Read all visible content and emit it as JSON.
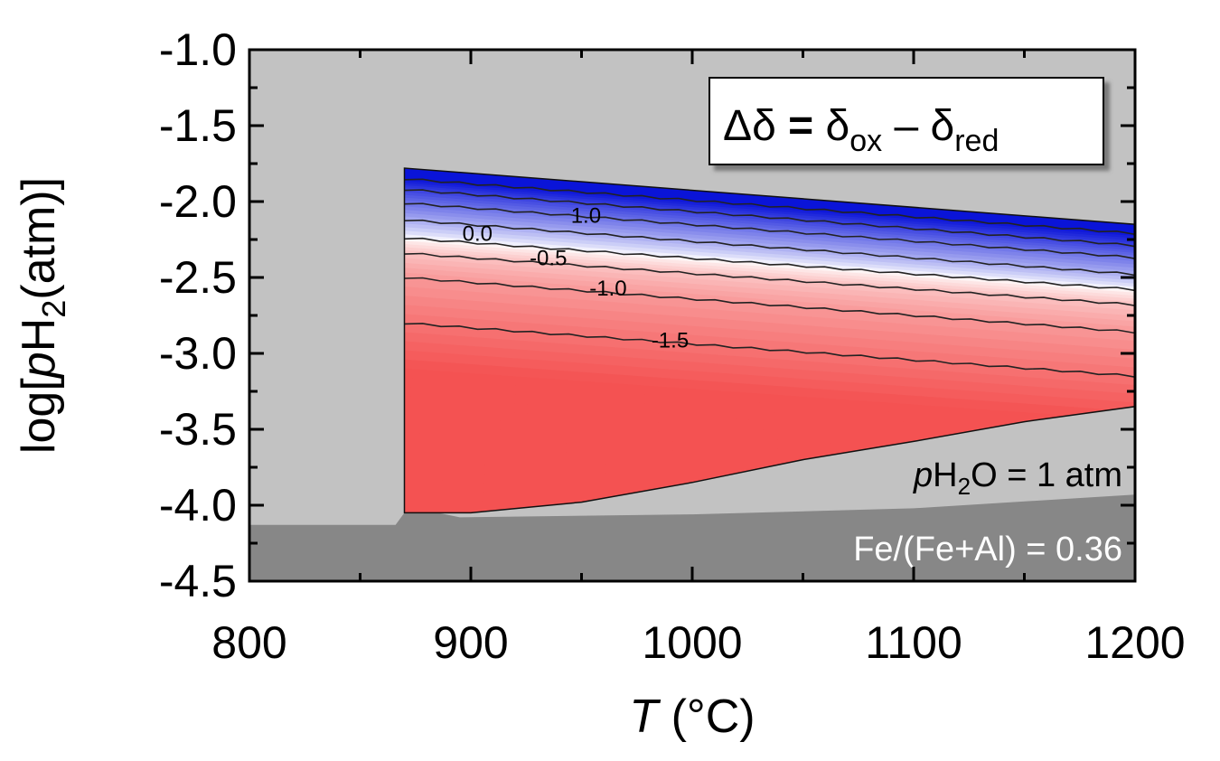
{
  "chart_data": {
    "type": "heatmap",
    "title": "",
    "xlabel": {
      "main": "T",
      "unit": " (°C)"
    },
    "ylabel": {
      "pre": "log[",
      "p": "p",
      "h": "H",
      "sub": "2",
      "post": "(atm)]"
    },
    "xlim": [
      800,
      1200
    ],
    "ylim": [
      -4.5,
      -1.0
    ],
    "xticks": [
      800,
      900,
      1000,
      1100,
      1200
    ],
    "xtick_labels": [
      "800",
      "900",
      "1000",
      "1100",
      "1200"
    ],
    "yticks": [
      -1.0,
      -1.5,
      -2.0,
      -2.5,
      -3.0,
      -3.5,
      -4.0,
      -4.5
    ],
    "ytick_labels": [
      "-1.0",
      "-1.5",
      "-2.0",
      "-2.5",
      "-3.0",
      "-3.5",
      "-4.0",
      "-4.5"
    ],
    "legend_box": {
      "delta": "Δδ",
      "eq": " = ",
      "d1": "δ",
      "s1": "ox",
      "minus": " – ",
      "d2": "δ",
      "s2": "red"
    },
    "annotation_ph2o": {
      "p": "p",
      "h": "H",
      "sub": "2",
      "rest": "O = 1 atm"
    },
    "annotation_comp": "Fe/(Fe+Al) = 0.36",
    "colors": {
      "region_light": "#c2c2c2",
      "region_dark": "#878787",
      "positive_max": "#0a14d8",
      "zero": "#ffffff",
      "negative_max": "#f45252"
    },
    "color_range": [
      -2.0,
      2.0
    ],
    "region_boundaries": {
      "upper_edge": [
        [
          870,
          -1.78
        ],
        [
          1200,
          -2.15
        ]
      ],
      "lower_edge": [
        [
          870,
          -4.05
        ],
        [
          900,
          -4.05
        ],
        [
          950,
          -3.98
        ],
        [
          1000,
          -3.85
        ],
        [
          1050,
          -3.7
        ],
        [
          1100,
          -3.58
        ],
        [
          1150,
          -3.45
        ],
        [
          1200,
          -3.35
        ]
      ],
      "dark_edge": [
        [
          800,
          -4.13
        ],
        [
          866,
          -4.13
        ],
        [
          870,
          -4.05
        ],
        [
          885,
          -4.05
        ],
        [
          895,
          -4.08
        ],
        [
          1000,
          -4.06
        ],
        [
          1100,
          -4.02
        ],
        [
          1200,
          -3.93
        ]
      ]
    },
    "contour_lines": [
      {
        "level": 2.0,
        "left_y": -1.85,
        "right_y": -2.21
      },
      {
        "level": 1.5,
        "left_y": -1.92,
        "right_y": -2.29
      },
      {
        "level": 1.0,
        "left_y": -2.01,
        "right_y": -2.37
      },
      {
        "level": 0.5,
        "left_y": -2.12,
        "right_y": -2.48
      },
      {
        "level": 0.0,
        "left_y": -2.24,
        "right_y": -2.58
      },
      {
        "level": -0.5,
        "left_y": -2.34,
        "right_y": -2.68
      },
      {
        "level": -1.0,
        "left_y": -2.5,
        "right_y": -2.86
      },
      {
        "level": -1.5,
        "left_y": -2.8,
        "right_y": -3.15
      }
    ],
    "contour_labels": [
      {
        "text": "1.0",
        "x": 952,
        "y": -2.14
      },
      {
        "text": "0.0",
        "x": 903,
        "y": -2.26
      },
      {
        "text": "-0.5",
        "x": 935,
        "y": -2.42
      },
      {
        "text": "-1.0",
        "x": 962,
        "y": -2.62
      },
      {
        "text": "-1.5",
        "x": 990,
        "y": -2.96
      }
    ]
  }
}
